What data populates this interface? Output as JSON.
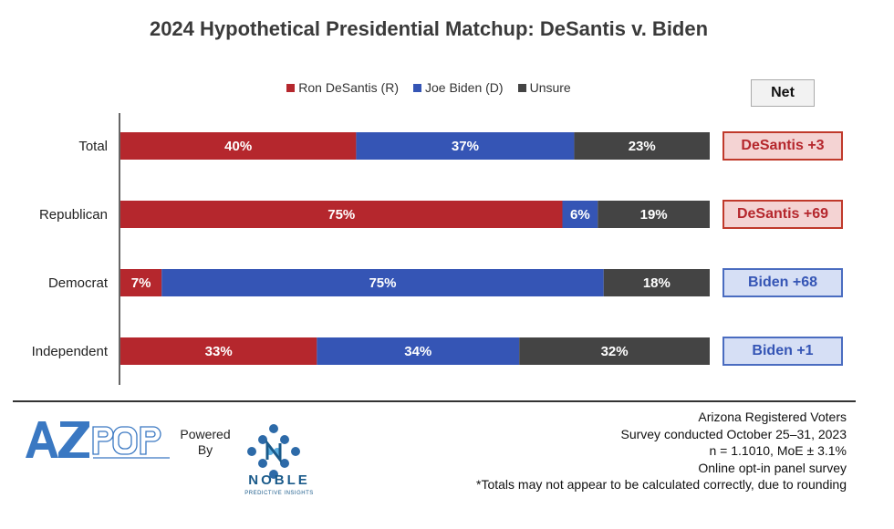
{
  "chart_data": {
    "type": "bar",
    "orientation": "horizontal",
    "stacked": true,
    "title": "2024 Hypothetical Presidential Matchup: DeSantis v. Biden",
    "categories": [
      "Total",
      "Republican",
      "Democrat",
      "Independent"
    ],
    "series": [
      {
        "name": "Ron DeSantis (R)",
        "color": "#b5272d",
        "values": [
          40,
          75,
          7,
          33
        ]
      },
      {
        "name": "Joe Biden (D)",
        "color": "#3555b5",
        "values": [
          37,
          6,
          75,
          34
        ]
      },
      {
        "name": "Unsure",
        "color": "#444444",
        "values": [
          23,
          19,
          18,
          32
        ]
      }
    ],
    "data_labels": [
      [
        "40%",
        "37%",
        "23%"
      ],
      [
        "75%",
        "6%",
        "19%"
      ],
      [
        "7%",
        "75%",
        "18%"
      ],
      [
        "33%",
        "34%",
        "32%"
      ]
    ],
    "legend_position": "top",
    "net_header": "Net",
    "net": [
      {
        "label": "DeSantis +3",
        "party": "R"
      },
      {
        "label": "DeSantis +69",
        "party": "R"
      },
      {
        "label": "Biden +68",
        "party": "D"
      },
      {
        "label": "Biden +1",
        "party": "D"
      }
    ]
  },
  "colors": {
    "republican": "#b5272d",
    "democrat": "#3555b5",
    "unsure": "#444444",
    "r_net_bg": "#f4d3d3",
    "r_net_border": "#c0392b",
    "d_net_bg": "#d6dff5",
    "d_net_border": "#4a6cc0"
  },
  "footer": {
    "logo_text": "AZPOP",
    "powered_by": "Powered By",
    "noble_name": "NOBLE",
    "noble_tagline": "PREDICTIVE INSIGHTS",
    "notes": [
      "Arizona Registered Voters",
      "Survey conducted October 25–31, 2023",
      "n = 1.1010, MoE ± 3.1%",
      "Online opt-in panel survey",
      "*Totals may not appear to be calculated correctly, due to rounding"
    ]
  }
}
